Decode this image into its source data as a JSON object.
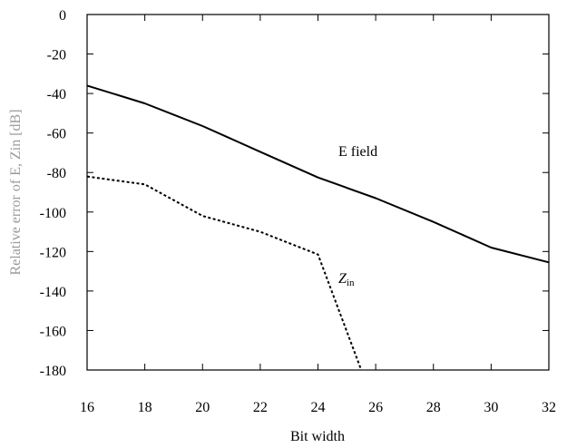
{
  "chart_data": {
    "type": "line",
    "xlabel": "Bit width",
    "ylabel": "Relative error of  E, Zin [dB]",
    "xlim": [
      16,
      32
    ],
    "ylim": [
      -180,
      0
    ],
    "xticks": [
      "16",
      "18",
      "20",
      "22",
      "24",
      "26",
      "28",
      "30",
      "32"
    ],
    "yticks": [
      "0",
      "-20",
      "-40",
      "-60",
      "-80",
      "-100",
      "-120",
      "-140",
      "-160",
      "-180"
    ],
    "grid": false,
    "series": [
      {
        "name": "E field",
        "style": "solid",
        "x": [
          16,
          18,
          20,
          22,
          24,
          26,
          28,
          30,
          32
        ],
        "y": [
          -36,
          -45,
          -56.5,
          -69.5,
          -82.5,
          -93,
          -105,
          -118,
          -125.5
        ]
      },
      {
        "name": "Zin",
        "style": "dashed",
        "x": [
          16,
          18,
          20,
          22,
          24,
          25.5
        ],
        "y": [
          -82,
          -86,
          -102,
          -110,
          -121.5,
          -180
        ]
      }
    ],
    "annotations": [
      {
        "text": "E field",
        "series": 0
      },
      {
        "text_main": "Z",
        "text_sub": "in",
        "series": 1
      }
    ],
    "colors": {
      "line": "#000000",
      "ylabel": "#9a9a9a"
    }
  }
}
